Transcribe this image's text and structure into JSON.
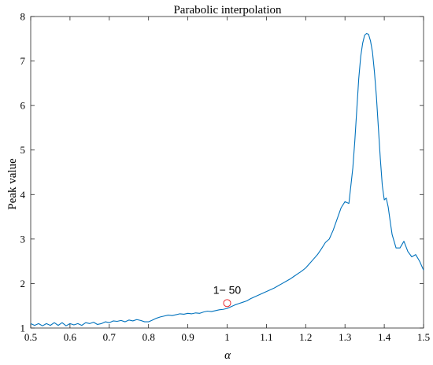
{
  "chart_data": {
    "type": "line",
    "title": "Parabolic interpolation",
    "xlabel": "α",
    "ylabel": "Peak value",
    "xlim": [
      0.5,
      1.5
    ],
    "ylim": [
      1,
      8
    ],
    "xticks": [
      0.5,
      0.6,
      0.7,
      0.8,
      0.9,
      1,
      1.1,
      1.2,
      1.3,
      1.4,
      1.5
    ],
    "xtick_labels": [
      "0.5",
      "0.6",
      "0.7",
      "0.8",
      "0.9",
      "1",
      "1.1",
      "1.2",
      "1.3",
      "1.4",
      "1.5"
    ],
    "yticks": [
      1,
      2,
      3,
      4,
      5,
      6,
      7,
      8
    ],
    "ytick_labels": [
      "1",
      "2",
      "3",
      "4",
      "5",
      "6",
      "7",
      "8"
    ],
    "grid": false,
    "series": [
      {
        "color": "#0072BD",
        "x": [
          0.5,
          0.51,
          0.52,
          0.53,
          0.54,
          0.55,
          0.56,
          0.57,
          0.58,
          0.59,
          0.6,
          0.61,
          0.62,
          0.63,
          0.64,
          0.65,
          0.66,
          0.67,
          0.68,
          0.69,
          0.7,
          0.71,
          0.72,
          0.73,
          0.74,
          0.75,
          0.76,
          0.77,
          0.78,
          0.79,
          0.8,
          0.81,
          0.82,
          0.83,
          0.84,
          0.85,
          0.86,
          0.87,
          0.88,
          0.89,
          0.9,
          0.91,
          0.92,
          0.93,
          0.94,
          0.95,
          0.96,
          0.97,
          0.98,
          0.99,
          1.0,
          1.01,
          1.02,
          1.03,
          1.04,
          1.05,
          1.06,
          1.07,
          1.08,
          1.09,
          1.1,
          1.11,
          1.12,
          1.13,
          1.14,
          1.15,
          1.16,
          1.17,
          1.18,
          1.19,
          1.2,
          1.21,
          1.22,
          1.23,
          1.24,
          1.25,
          1.26,
          1.27,
          1.28,
          1.29,
          1.3,
          1.31,
          1.32,
          1.325,
          1.33,
          1.335,
          1.34,
          1.345,
          1.35,
          1.355,
          1.36,
          1.365,
          1.37,
          1.375,
          1.38,
          1.385,
          1.39,
          1.395,
          1.4,
          1.405,
          1.41,
          1.415,
          1.42,
          1.43,
          1.44,
          1.45,
          1.46,
          1.47,
          1.48,
          1.49,
          1.5
        ],
        "y": [
          1.1,
          1.06,
          1.1,
          1.05,
          1.1,
          1.06,
          1.12,
          1.06,
          1.12,
          1.05,
          1.1,
          1.07,
          1.1,
          1.06,
          1.12,
          1.1,
          1.13,
          1.08,
          1.1,
          1.14,
          1.12,
          1.16,
          1.15,
          1.17,
          1.14,
          1.18,
          1.16,
          1.19,
          1.17,
          1.14,
          1.14,
          1.18,
          1.22,
          1.25,
          1.27,
          1.29,
          1.28,
          1.3,
          1.32,
          1.31,
          1.33,
          1.32,
          1.34,
          1.33,
          1.36,
          1.38,
          1.37,
          1.39,
          1.41,
          1.42,
          1.44,
          1.48,
          1.52,
          1.55,
          1.58,
          1.61,
          1.66,
          1.7,
          1.74,
          1.78,
          1.82,
          1.86,
          1.9,
          1.95,
          2.0,
          2.05,
          2.1,
          2.16,
          2.22,
          2.28,
          2.35,
          2.45,
          2.55,
          2.65,
          2.78,
          2.92,
          3.0,
          3.2,
          3.45,
          3.7,
          3.84,
          3.8,
          4.6,
          5.2,
          5.9,
          6.6,
          7.1,
          7.4,
          7.58,
          7.62,
          7.6,
          7.45,
          7.2,
          6.75,
          6.2,
          5.5,
          4.8,
          4.2,
          3.88,
          3.92,
          3.72,
          3.4,
          3.1,
          2.8,
          2.8,
          2.95,
          2.72,
          2.6,
          2.65,
          2.5,
          2.3
        ]
      }
    ],
    "annotations": [
      {
        "text": "1− 50",
        "x": 1.0,
        "y": 1.56,
        "marker": "circle",
        "marker_color": "#e8292d"
      }
    ]
  }
}
